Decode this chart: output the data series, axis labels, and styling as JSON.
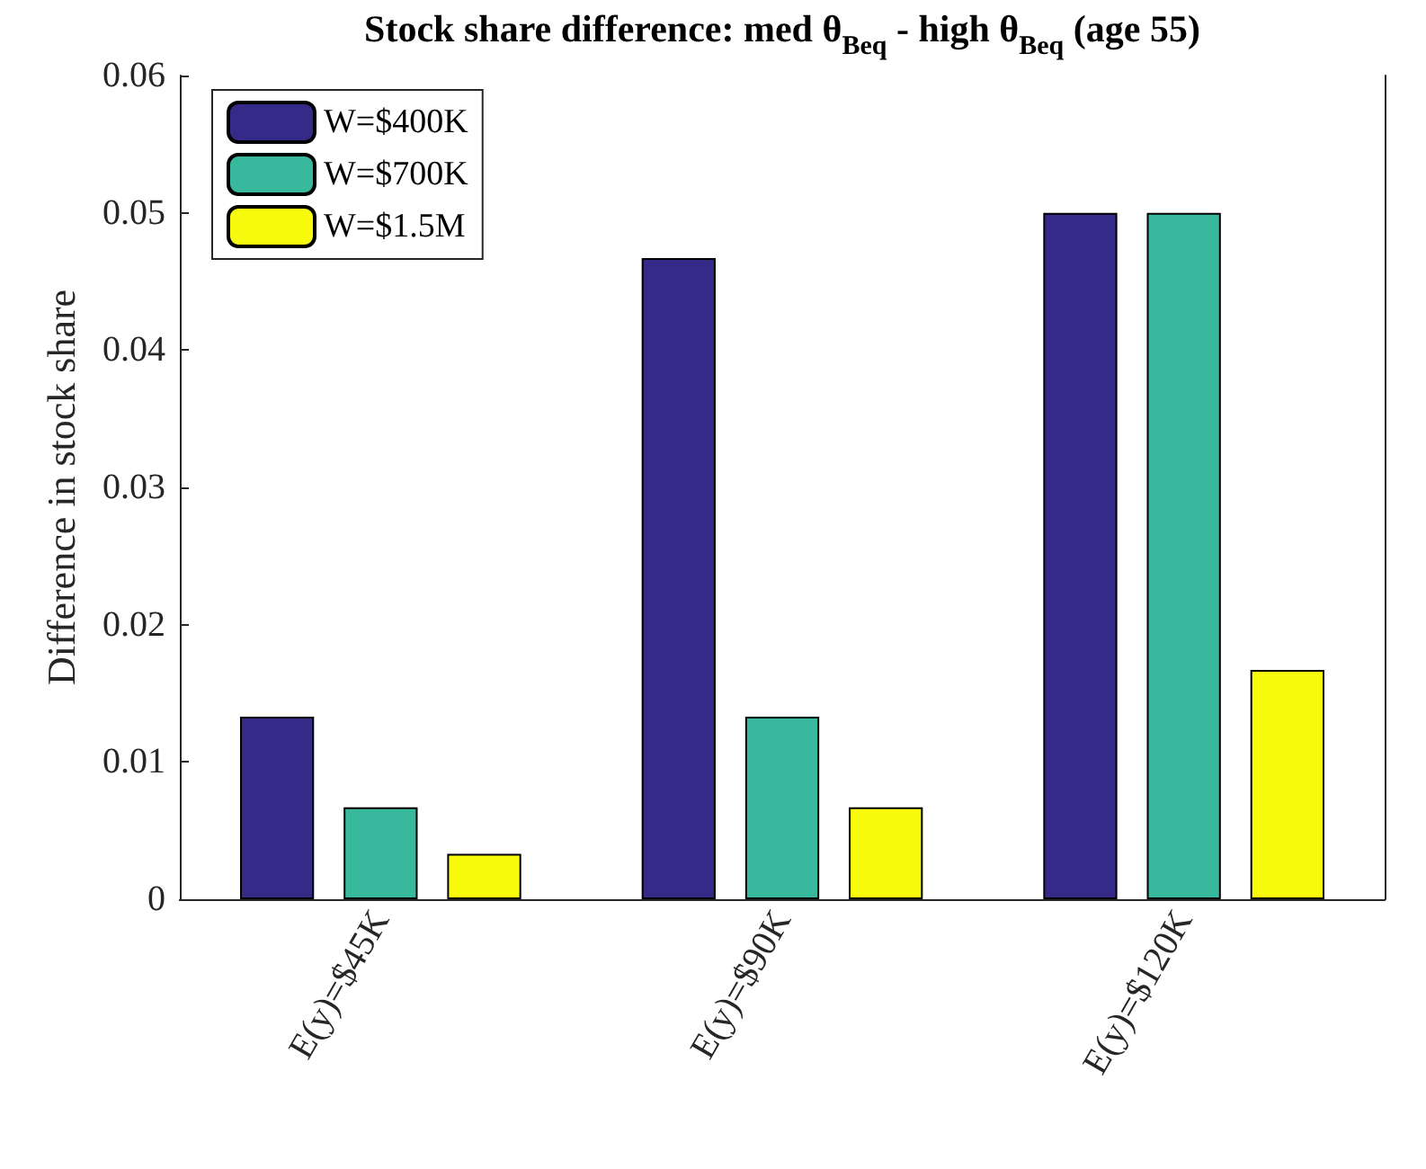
{
  "chart_data": {
    "type": "bar",
    "title": "Stock share difference: med θ$_{Beq}$ - high θ$_{Beq}$ (age 55)",
    "ylabel": "Difference in stock share",
    "categories": [
      "E(y)=$45K",
      "E(y)=$90K",
      "E(y)=$120K"
    ],
    "series": [
      {
        "name": "W=$400K",
        "color": "#352a87",
        "values": [
          0.0133,
          0.0467,
          0.05
        ]
      },
      {
        "name": "W=$700K",
        "color": "#38b89c",
        "values": [
          0.0067,
          0.0133,
          0.05
        ]
      },
      {
        "name": "W=$1.5M",
        "color": "#f9fb0e",
        "values": [
          0.0033,
          0.0067,
          0.0167
        ]
      }
    ],
    "ylim": [
      0,
      0.06
    ],
    "yticks": [
      0,
      0.01,
      0.02,
      0.03,
      0.04,
      0.05,
      0.06
    ],
    "grid": false,
    "legend": "top left"
  }
}
